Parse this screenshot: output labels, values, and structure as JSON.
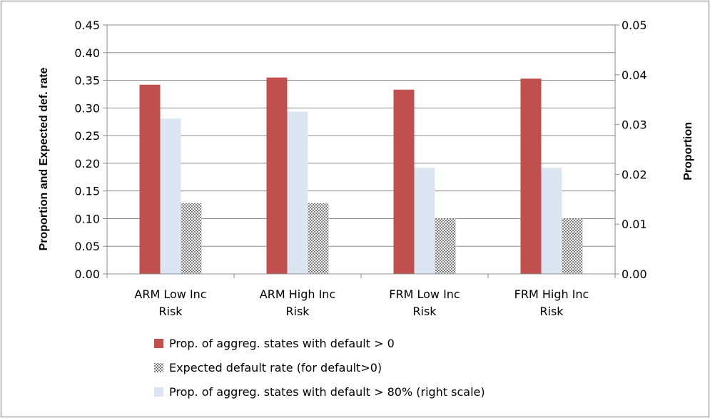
{
  "chart_data": {
    "type": "bar",
    "categories": [
      [
        "ARM Low Inc",
        "Risk"
      ],
      [
        "ARM High Inc",
        "Risk"
      ],
      [
        "FRM Low Inc",
        "Risk"
      ],
      [
        "FRM High Inc",
        "Risk"
      ]
    ],
    "series": [
      {
        "name": "Prop. of aggreg. states with default > 0",
        "axis": "left",
        "color": "#c0504d",
        "pattern": "solid",
        "values": [
          0.342,
          0.355,
          0.333,
          0.353
        ]
      },
      {
        "name": "Prop. of aggreg. states with default > 80% (right scale)",
        "axis": "right",
        "color": "#dce6f2",
        "pattern": "solid",
        "values": [
          0.0312,
          0.0326,
          0.0213,
          0.0213
        ]
      },
      {
        "name": "Expected default rate (for default>0)",
        "axis": "left",
        "color": "#a6a6a6",
        "pattern": "crosshatch",
        "values": [
          0.128,
          0.128,
          0.1,
          0.1
        ]
      }
    ],
    "legend_order": [
      0,
      2,
      1
    ],
    "left_axis": {
      "label": "Proportion and Expected def. rate",
      "ylim": [
        0,
        0.45
      ],
      "ticks": [
        "0.00",
        "0.05",
        "0.10",
        "0.15",
        "0.20",
        "0.25",
        "0.30",
        "0.35",
        "0.40",
        "0.45"
      ]
    },
    "right_axis": {
      "label": "Proportion",
      "ylim": [
        0,
        0.05
      ],
      "ticks": [
        "0.00",
        "0.01",
        "0.02",
        "0.03",
        "0.04",
        "0.05"
      ]
    },
    "grid": true,
    "legend_position": "bottom"
  }
}
